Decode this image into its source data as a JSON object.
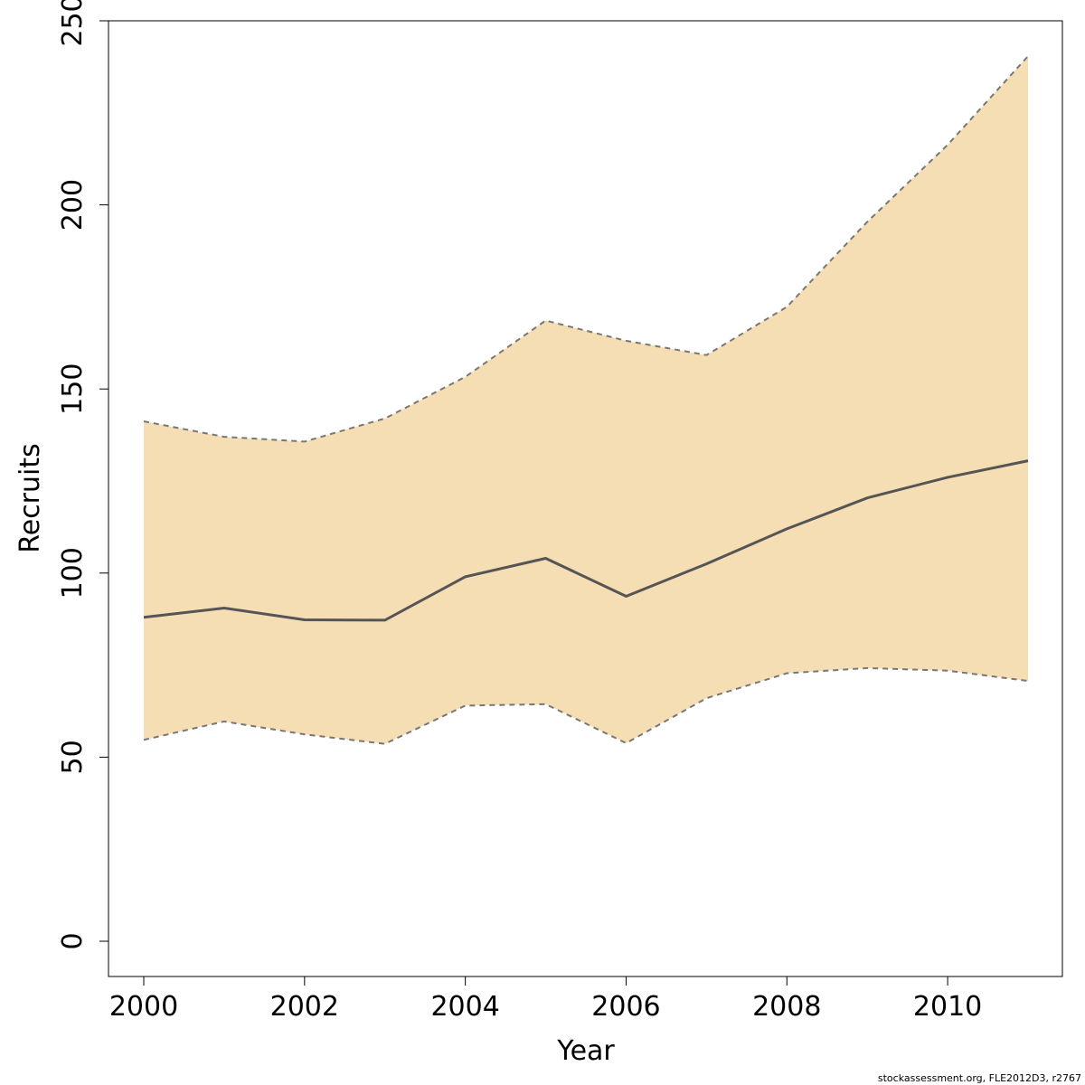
{
  "chart_data": {
    "type": "area",
    "xlabel": "Year",
    "ylabel": "Recruits",
    "x": [
      2000,
      2001,
      2002,
      2003,
      2004,
      2005,
      2006,
      2007,
      2008,
      2009,
      2010,
      2011
    ],
    "series": [
      {
        "role": "estimate",
        "values": [
          88,
          90.5,
          87.3,
          87.2,
          99,
          104,
          93.7,
          102.5,
          112,
          120.4,
          126,
          130.5
        ]
      },
      {
        "role": "upper",
        "values": [
          141.2,
          137,
          135.7,
          142,
          153.3,
          168.6,
          163.1,
          159.2,
          172.3,
          195.4,
          216.3,
          240.4
        ]
      },
      {
        "role": "lower",
        "values": [
          54.7,
          59.7,
          56.2,
          53.6,
          64,
          64.4,
          53.8,
          66,
          72.8,
          74.2,
          73.5,
          70.7
        ]
      }
    ],
    "xlim": [
      2000,
      2011
    ],
    "ylim": [
      0,
      250
    ],
    "x_ticks": [
      2000,
      2002,
      2004,
      2006,
      2008,
      2010
    ],
    "y_ticks": [
      0,
      50,
      100,
      150,
      200,
      250
    ],
    "grid": false,
    "colors": {
      "band_fill": "#f5deb3",
      "band_edge": "#777777",
      "estimate_line": "#555555",
      "axis": "#000000"
    }
  },
  "footer": {
    "source_text": "stockassessment.org, FLE2012D3, r2767"
  }
}
